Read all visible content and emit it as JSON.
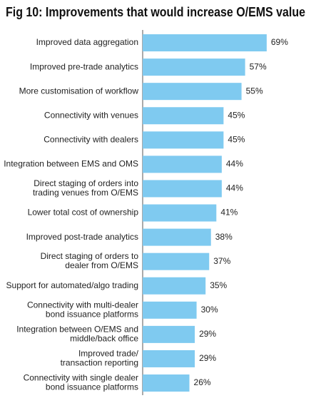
{
  "chart_data": {
    "type": "barh",
    "title": "Fig 10: Improvements that would increase O/EMS value",
    "categories": [
      "Improved data aggregation",
      "Improved pre-trade analytics",
      "More customisation of workflow",
      "Connectivity with venues",
      "Connectivity with dealers",
      "Integration between EMS and OMS",
      "Direct staging of orders into\ntrading venues from O/EMS",
      "Lower total cost of ownership",
      "Improved post-trade analytics",
      "Direct staging of orders to\ndealer from O/EMS",
      "Support for automated/algo trading",
      "Connectivity with multi-dealer\nbond issuance platforms",
      "Integration between O/EMS and\nmiddle/back office",
      "Improved trade/\ntransaction reporting",
      "Connectivity with single dealer\nbond issuance platforms"
    ],
    "values": [
      69,
      57,
      55,
      45,
      45,
      44,
      44,
      41,
      38,
      37,
      35,
      30,
      29,
      29,
      26
    ],
    "value_labels": [
      "69%",
      "57%",
      "55%",
      "45%",
      "45%",
      "44%",
      "44%",
      "41%",
      "38%",
      "37%",
      "35%",
      "30%",
      "29%",
      "29%",
      "26%"
    ],
    "color": "#7fcaf0"
  }
}
